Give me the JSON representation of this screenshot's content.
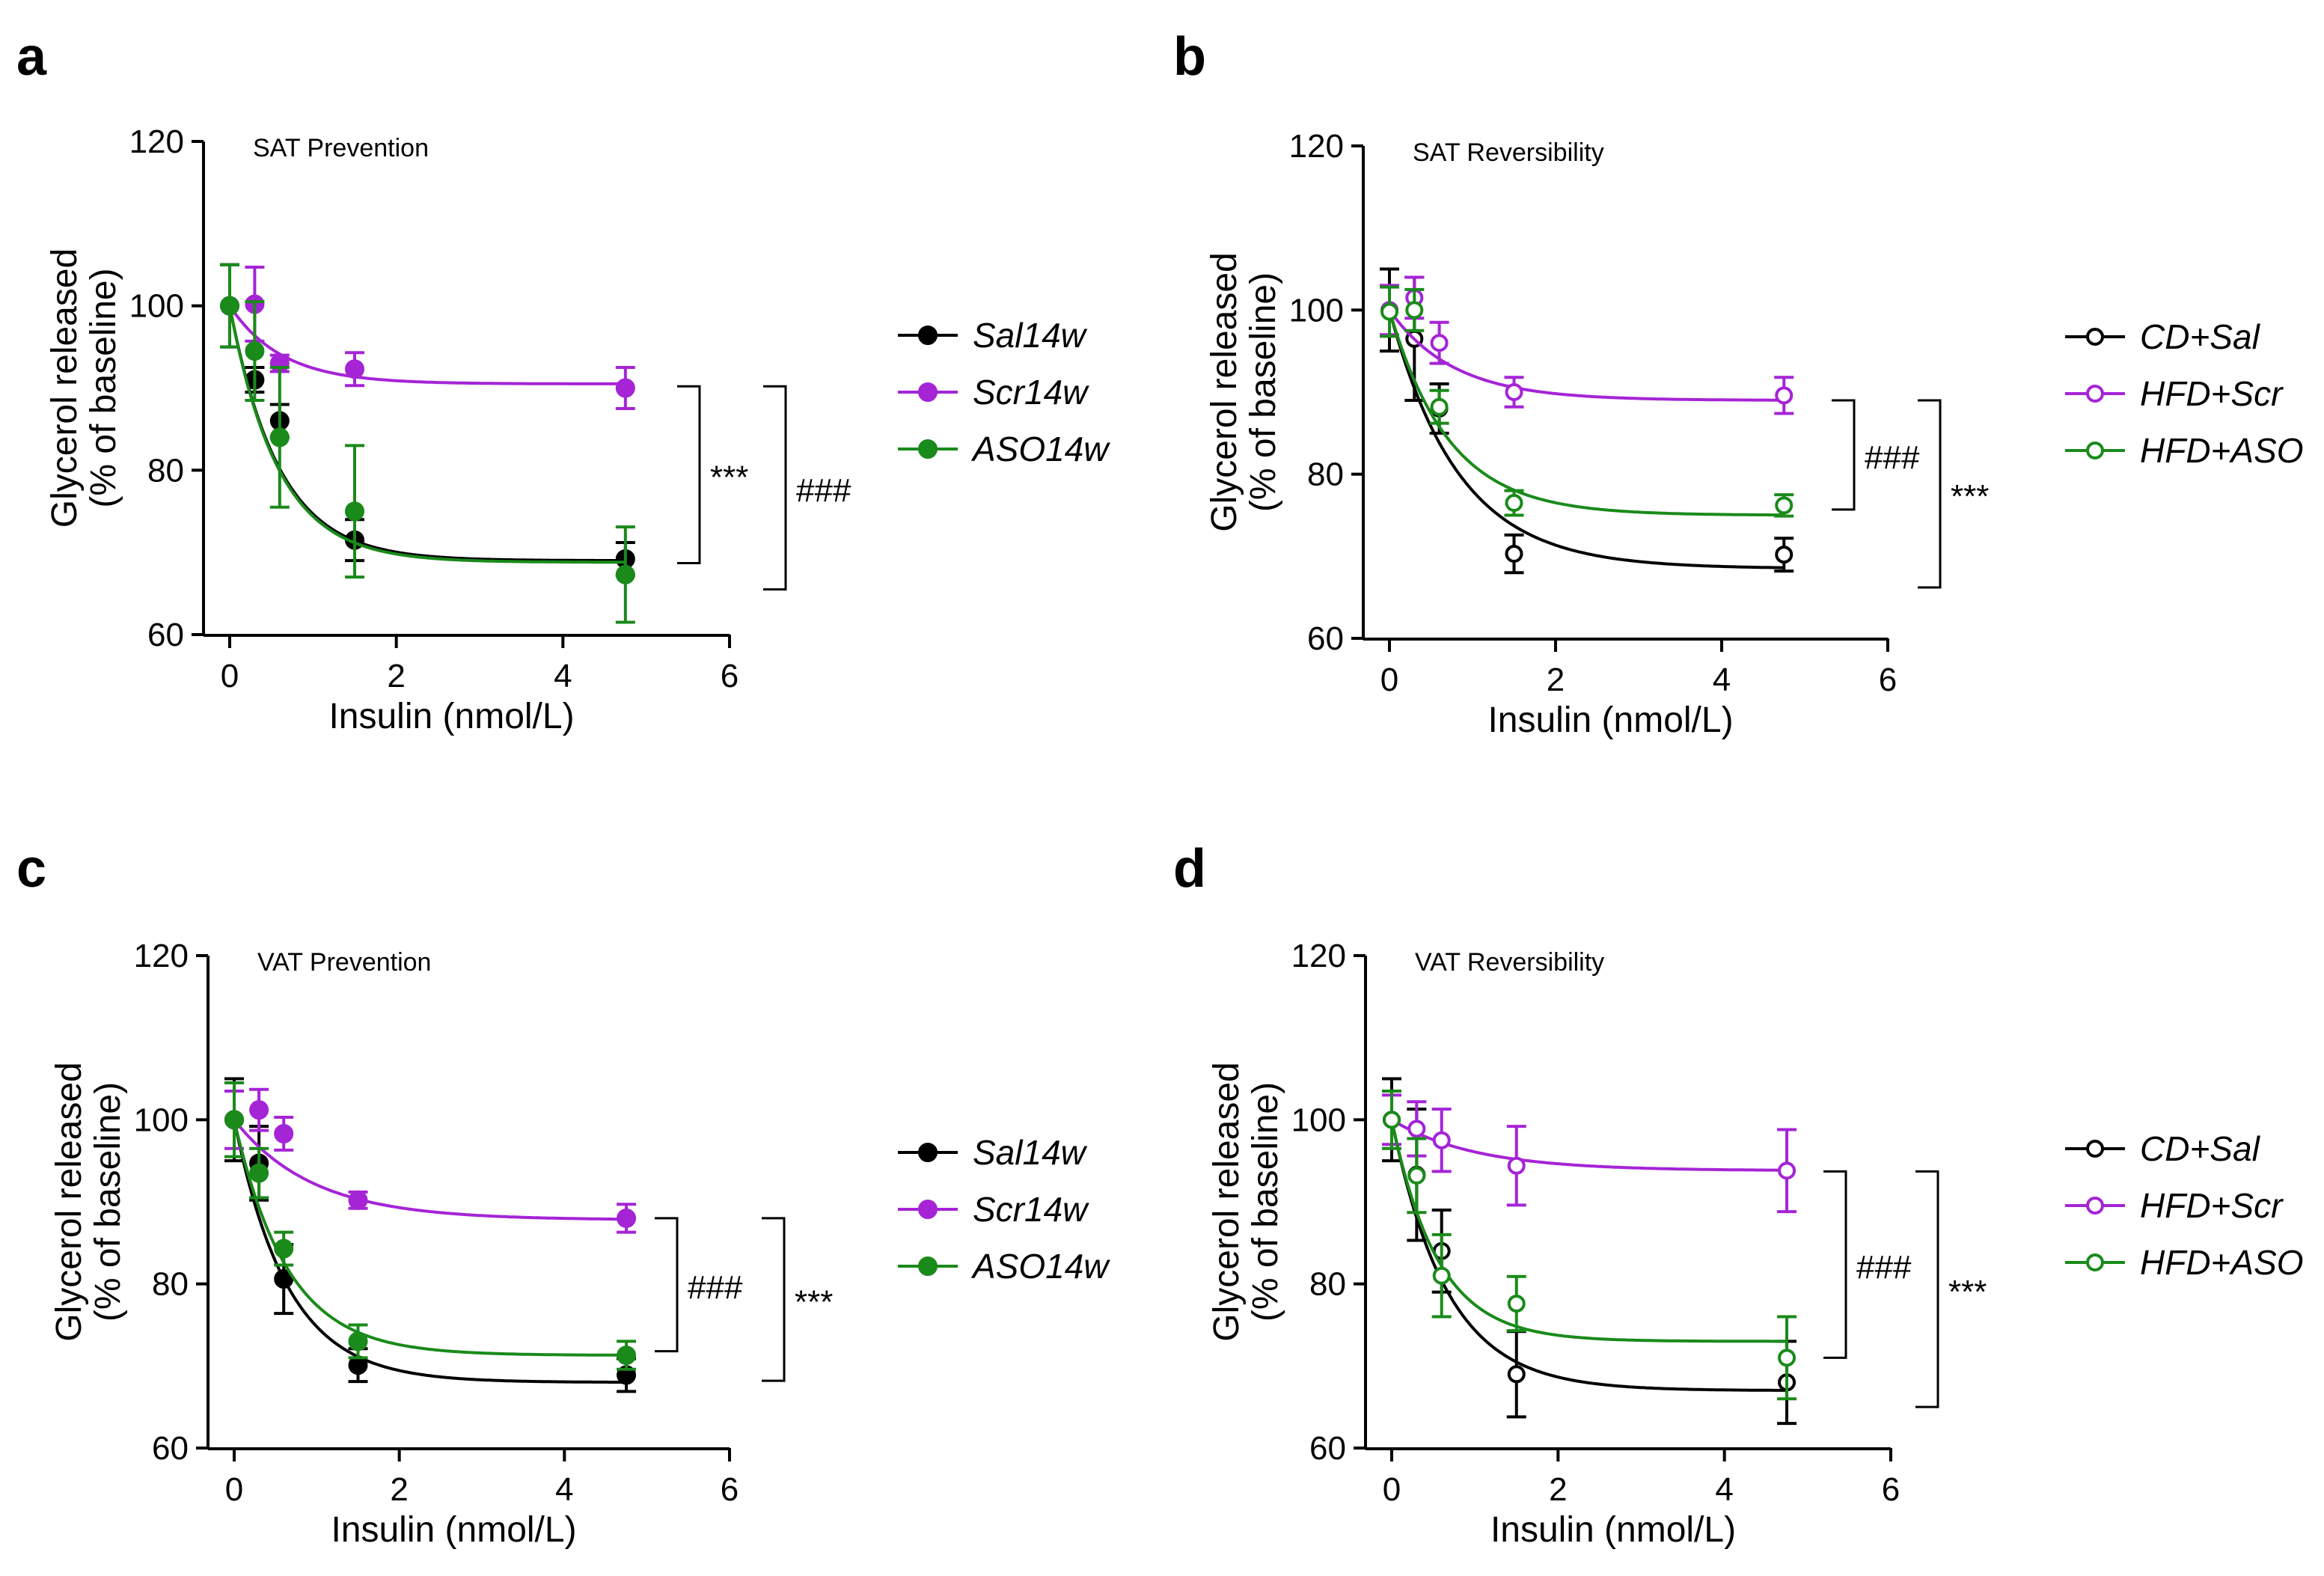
{
  "chart_data": [
    {
      "panel": "a",
      "type": "line",
      "title": "SAT Prevention",
      "xlabel": "Insulin (nmol/L)",
      "ylabel_line1": "Glycerol released",
      "ylabel_line2": "(% of baseline)",
      "xlim": [
        0,
        6
      ],
      "ylim": [
        60,
        120
      ],
      "xticks": [
        0,
        2,
        4,
        6
      ],
      "yticks": [
        60,
        80,
        100,
        120
      ],
      "marker": "filled",
      "series": [
        {
          "name": "Sal14w",
          "color": "#000000",
          "x": [
            0,
            0.3,
            0.6,
            1.5,
            4.75
          ],
          "y": [
            100,
            91,
            86,
            71.5,
            69.2
          ],
          "err": [
            5,
            1.5,
            2,
            2.5,
            2
          ],
          "fit": {
            "top": 100,
            "bottom": 69,
            "k": 1.7
          }
        },
        {
          "name": "Scr14w",
          "color": "#a524d6",
          "x": [
            0,
            0.3,
            0.6,
            1.5,
            4.75
          ],
          "y": [
            100,
            100.2,
            93,
            92.3,
            90
          ],
          "err": [
            5,
            4.5,
            1,
            2,
            2.5
          ],
          "fit": {
            "top": 100,
            "bottom": 90.5,
            "k": 1.6
          }
        },
        {
          "name": "ASO14w",
          "color": "#1a8a1a",
          "x": [
            0,
            0.3,
            0.6,
            1.5,
            4.75
          ],
          "y": [
            100,
            94.5,
            84,
            75,
            67.3
          ],
          "err": [
            5,
            6,
            8.5,
            8,
            5.8
          ],
          "fit": {
            "top": 100,
            "bottom": 68.8,
            "k": 1.72
          }
        }
      ],
      "brackets": [
        {
          "label": "***",
          "y_top": 90.2,
          "y_bottom": 68.7
        },
        {
          "label": "###",
          "y_top": 90.2,
          "y_bottom": 65.5
        }
      ]
    },
    {
      "panel": "b",
      "type": "line",
      "title": "SAT Reversibility",
      "xlabel": "Insulin (nmol/L)",
      "ylabel_line1": "Glycerol released",
      "ylabel_line2": "(% of baseline)",
      "xlim": [
        0,
        6
      ],
      "ylim": [
        60,
        120
      ],
      "xticks": [
        0,
        2,
        4,
        6
      ],
      "yticks": [
        60,
        80,
        100,
        120
      ],
      "marker": "open",
      "series": [
        {
          "name": "CD+Sal",
          "color": "#000000",
          "x": [
            0,
            0.3,
            0.6,
            1.5,
            4.75
          ],
          "y": [
            100,
            96.5,
            88,
            70.3,
            70.2
          ],
          "err": [
            5,
            7.5,
            3,
            2.3,
            2
          ],
          "fit": {
            "top": 100,
            "bottom": 68.5,
            "k": 1.2
          }
        },
        {
          "name": "HFD+Scr",
          "color": "#a524d6",
          "x": [
            0,
            0.3,
            0.6,
            1.5,
            4.75
          ],
          "y": [
            100,
            101.5,
            96,
            90,
            89.6
          ],
          "err": [
            3,
            2.5,
            2.5,
            1.8,
            2.2
          ],
          "fit": {
            "top": 100,
            "bottom": 89,
            "k": 1.3
          }
        },
        {
          "name": "HFD+ASO",
          "color": "#1a8a1a",
          "x": [
            0,
            0.3,
            0.6,
            1.5,
            4.75
          ],
          "y": [
            99.8,
            100,
            88.2,
            76.5,
            76.2
          ],
          "err": [
            3,
            2.5,
            2,
            1.5,
            1.3
          ],
          "fit": {
            "top": 100,
            "bottom": 75,
            "k": 1.4
          }
        }
      ],
      "brackets": [
        {
          "label": "###",
          "y_top": 89,
          "y_bottom": 75.7
        },
        {
          "label": "***",
          "y_top": 89,
          "y_bottom": 66.2
        }
      ]
    },
    {
      "panel": "c",
      "type": "line",
      "title": "VAT Prevention",
      "xlabel": "Insulin (nmol/L)",
      "ylabel_line1": "Glycerol released",
      "ylabel_line2": "(% of baseline)",
      "xlim": [
        0,
        6
      ],
      "ylim": [
        60,
        120
      ],
      "xticks": [
        0,
        2,
        4,
        6
      ],
      "yticks": [
        60,
        80,
        100,
        120
      ],
      "marker": "filled",
      "series": [
        {
          "name": "Sal14w",
          "color": "#000000",
          "x": [
            0,
            0.3,
            0.6,
            1.5,
            4.75
          ],
          "y": [
            100,
            94.7,
            80.6,
            70.1,
            68.9
          ],
          "err": [
            5,
            4.5,
            4.2,
            2,
            2
          ],
          "fit": {
            "top": 100,
            "bottom": 68,
            "k": 1.55
          }
        },
        {
          "name": "Scr14w",
          "color": "#a524d6",
          "x": [
            0,
            0.3,
            0.6,
            1.5,
            4.75
          ],
          "y": [
            100,
            101.2,
            98.3,
            90.2,
            88
          ],
          "err": [
            3.5,
            2.5,
            2,
            1,
            1.7
          ],
          "fit": {
            "top": 100,
            "bottom": 87.8,
            "k": 1.05
          }
        },
        {
          "name": "ASO14w",
          "color": "#1a8a1a",
          "x": [
            0,
            0.3,
            0.6,
            1.5,
            4.75
          ],
          "y": [
            100,
            93.5,
            84.3,
            73,
            71.3
          ],
          "err": [
            4.5,
            3,
            2,
            2,
            1.7
          ],
          "fit": {
            "top": 100,
            "bottom": 71.3,
            "k": 1.55
          }
        }
      ],
      "brackets": [
        {
          "label": "###",
          "y_top": 88,
          "y_bottom": 71.8
        },
        {
          "label": "***",
          "y_top": 88,
          "y_bottom": 68.2
        }
      ]
    },
    {
      "panel": "d",
      "type": "line",
      "title": "VAT Reversibility",
      "xlabel": "Insulin (nmol/L)",
      "ylabel_line1": "Glycerol released",
      "ylabel_line2": "(% of baseline)",
      "xlim": [
        0,
        6
      ],
      "ylim": [
        60,
        120
      ],
      "xticks": [
        0,
        2,
        4,
        6
      ],
      "yticks": [
        60,
        80,
        100,
        120
      ],
      "marker": "open",
      "series": [
        {
          "name": "CD+Sal",
          "color": "#000000",
          "x": [
            0,
            0.3,
            0.6,
            1.5,
            4.75
          ],
          "y": [
            100,
            93.3,
            84,
            69,
            68
          ],
          "err": [
            5,
            8,
            5,
            5.2,
            5
          ],
          "fit": {
            "top": 100,
            "bottom": 67,
            "k": 1.5
          }
        },
        {
          "name": "HFD+Scr",
          "color": "#a524d6",
          "x": [
            0,
            0.3,
            0.6,
            1.5,
            4.75
          ],
          "y": [
            100,
            98.9,
            97.5,
            94.4,
            93.8
          ],
          "err": [
            3,
            3.3,
            3.8,
            4.8,
            5
          ],
          "fit": {
            "top": 100,
            "bottom": 93.8,
            "k": 1.0
          }
        },
        {
          "name": "HFD+ASO",
          "color": "#1a8a1a",
          "x": [
            0,
            0.3,
            0.6,
            1.5,
            4.75
          ],
          "y": [
            100,
            93.2,
            81,
            77.6,
            71
          ],
          "err": [
            3.5,
            4.5,
            5,
            3.3,
            5
          ],
          "fit": {
            "top": 100,
            "bottom": 73,
            "k": 1.8
          }
        }
      ],
      "brackets": [
        {
          "label": "###",
          "y_top": 93.7,
          "y_bottom": 71
        },
        {
          "label": "***",
          "y_top": 93.7,
          "y_bottom": 65
        }
      ]
    }
  ]
}
